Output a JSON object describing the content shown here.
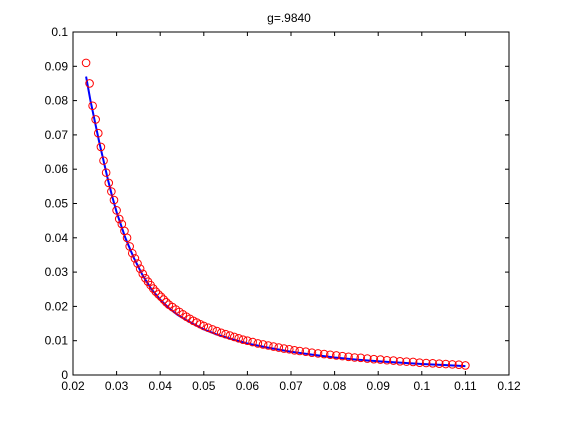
{
  "chart_data": {
    "type": "scatter",
    "title": "g=.9840",
    "xlabel": "",
    "ylabel": "",
    "xlim": [
      0.02,
      0.12
    ],
    "ylim": [
      0,
      0.1
    ],
    "xticks": [
      "0.02",
      "0.03",
      "0.04",
      "0.05",
      "0.06",
      "0.07",
      "0.08",
      "0.09",
      "0.1",
      "0.11",
      "0.12"
    ],
    "yticks": [
      "0",
      "0.01",
      "0.02",
      "0.03",
      "0.04",
      "0.05",
      "0.06",
      "0.07",
      "0.08",
      "0.09",
      "0.1"
    ],
    "grid": false,
    "legend": "none",
    "series": [
      {
        "kind": "markers",
        "marker": "circle",
        "color": "#ff0000",
        "x": [
          0.023,
          0.0238,
          0.0245,
          0.0252,
          0.0258,
          0.0264,
          0.027,
          0.0276,
          0.0282,
          0.0288,
          0.0294,
          0.03,
          0.0306,
          0.0312,
          0.0318,
          0.0324,
          0.033,
          0.0336,
          0.0342,
          0.0348,
          0.0354,
          0.036,
          0.0366,
          0.0372,
          0.0378,
          0.0384,
          0.039,
          0.0396,
          0.0402,
          0.0408,
          0.0414,
          0.042,
          0.0428,
          0.0436,
          0.0444,
          0.0452,
          0.046,
          0.0468,
          0.0476,
          0.0484,
          0.0492,
          0.05,
          0.051,
          0.052,
          0.053,
          0.054,
          0.055,
          0.056,
          0.057,
          0.058,
          0.059,
          0.06,
          0.0612,
          0.0624,
          0.0636,
          0.0648,
          0.066,
          0.0672,
          0.0684,
          0.0696,
          0.0708,
          0.072,
          0.0734,
          0.0748,
          0.0762,
          0.0776,
          0.079,
          0.0804,
          0.0818,
          0.0832,
          0.0846,
          0.086,
          0.0875,
          0.089,
          0.0905,
          0.092,
          0.0935,
          0.095,
          0.0965,
          0.098,
          0.0995,
          0.101,
          0.1025,
          0.104,
          0.1055,
          0.107,
          0.1085,
          0.11
        ],
        "y": [
          0.091,
          0.085,
          0.0785,
          0.0745,
          0.0705,
          0.0665,
          0.0625,
          0.059,
          0.056,
          0.0535,
          0.051,
          0.048,
          0.0455,
          0.044,
          0.042,
          0.04,
          0.0375,
          0.0355,
          0.034,
          0.0325,
          0.031,
          0.0295,
          0.0282,
          0.0272,
          0.0262,
          0.0252,
          0.0243,
          0.0235,
          0.0228,
          0.022,
          0.0212,
          0.0205,
          0.0198,
          0.0191,
          0.0184,
          0.0177,
          0.017,
          0.0164,
          0.0158,
          0.0153,
          0.0148,
          0.0143,
          0.0138,
          0.0133,
          0.0128,
          0.0123,
          0.0119,
          0.0115,
          0.0111,
          0.0107,
          0.0103,
          0.01,
          0.0096,
          0.0092,
          0.0089,
          0.0086,
          0.0083,
          0.008,
          0.0077,
          0.0075,
          0.0072,
          0.007,
          0.0068,
          0.0065,
          0.0063,
          0.0061,
          0.0059,
          0.0057,
          0.0055,
          0.0053,
          0.0051,
          0.005,
          0.0048,
          0.0046,
          0.0045,
          0.0043,
          0.0042,
          0.004,
          0.0039,
          0.0038,
          0.0036,
          0.0035,
          0.0034,
          0.0033,
          0.0032,
          0.0031,
          0.003,
          0.0028
        ]
      },
      {
        "kind": "line",
        "color": "#0000ff",
        "x": [
          0.023,
          0.024,
          0.025,
          0.026,
          0.027,
          0.028,
          0.029,
          0.03,
          0.032,
          0.034,
          0.036,
          0.038,
          0.04,
          0.042,
          0.044,
          0.046,
          0.048,
          0.05,
          0.053,
          0.056,
          0.06,
          0.065,
          0.07,
          0.075,
          0.08,
          0.085,
          0.09,
          0.095,
          0.1,
          0.105,
          0.11
        ],
        "y": [
          0.087,
          0.08,
          0.074,
          0.068,
          0.0625,
          0.057,
          0.052,
          0.0475,
          0.04,
          0.034,
          0.029,
          0.025,
          0.022,
          0.0195,
          0.0175,
          0.016,
          0.0146,
          0.0133,
          0.0118,
          0.0106,
          0.0092,
          0.0079,
          0.0068,
          0.0059,
          0.0051,
          0.0045,
          0.004,
          0.0036,
          0.0032,
          0.0029,
          0.0026
        ]
      }
    ]
  }
}
